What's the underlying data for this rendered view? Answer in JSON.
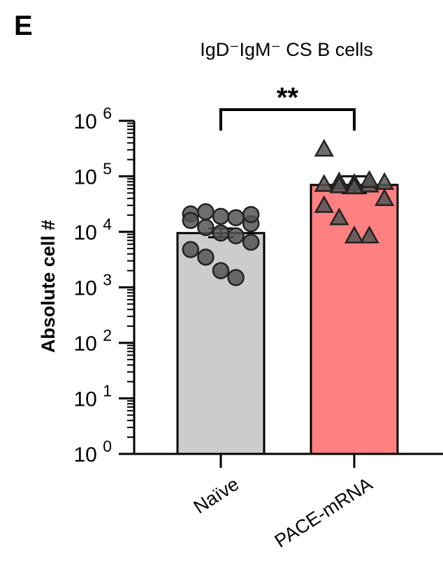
{
  "panel_letter": "E",
  "chart_data": {
    "type": "bar",
    "title": "IgD⁻IgM⁻ CS B cells",
    "ylabel": "Absolute cell #",
    "xlabel": "",
    "yscale": "log",
    "ylim": [
      1,
      1000000
    ],
    "y_ticks": [
      {
        "base": "10",
        "exp": "0",
        "value": 1
      },
      {
        "base": "10",
        "exp": "1",
        "value": 10
      },
      {
        "base": "10",
        "exp": "2",
        "value": 100
      },
      {
        "base": "10",
        "exp": "3",
        "value": 1000
      },
      {
        "base": "10",
        "exp": "4",
        "value": 10000
      },
      {
        "base": "10",
        "exp": "5",
        "value": 100000
      },
      {
        "base": "10",
        "exp": "6",
        "value": 1000000
      }
    ],
    "categories": [
      "Naïve",
      "PACE-mRNA"
    ],
    "bars": [
      {
        "category": "Naïve",
        "mean": 9500,
        "sem_low": 8000,
        "sem_high": 11500,
        "fill": "#cccccc",
        "marker": "circle",
        "points": [
          21000,
          23000,
          19000,
          18000,
          14000,
          16000,
          12000,
          9500,
          8500,
          6500,
          4800,
          3500,
          2000,
          1500,
          20500
        ]
      },
      {
        "category": "PACE-mRNA",
        "mean": 70000,
        "sem_low": 50000,
        "sem_high": 100000,
        "fill": "#ff8080",
        "marker": "triangle",
        "points": [
          310000,
          80000,
          75000,
          70000,
          78000,
          72000,
          68000,
          65000,
          85000,
          40000,
          30000,
          18000,
          8500,
          8500
        ]
      }
    ],
    "comparisons": [
      {
        "from": "Naïve",
        "to": "PACE-mRNA",
        "label": "**"
      }
    ],
    "grid": false,
    "legend": "none"
  }
}
